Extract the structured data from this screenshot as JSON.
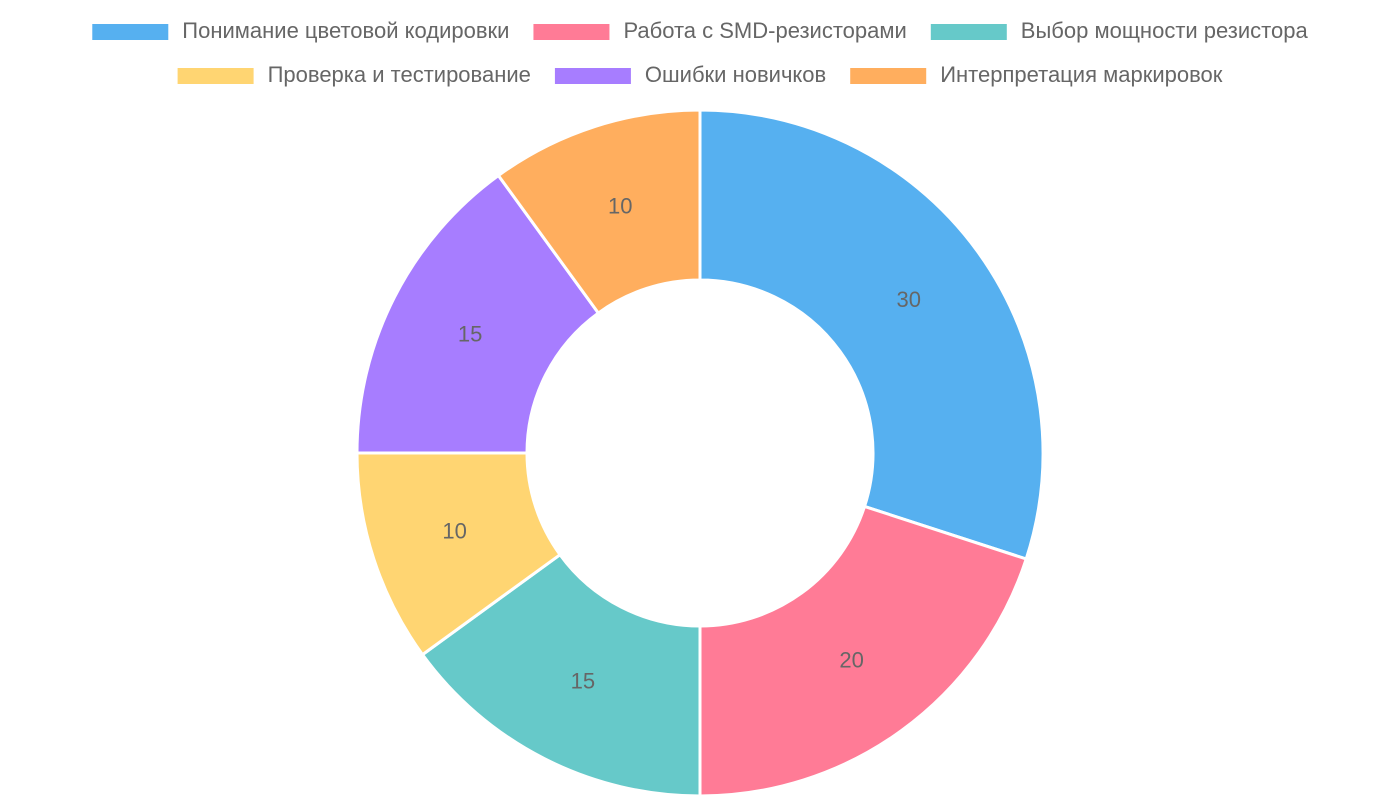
{
  "chart_data": {
    "type": "doughnut",
    "categories": [
      "Понимание цветовой кодировки",
      "Работа с SMD-резисторами",
      "Выбор мощности резистора",
      "Проверка и тестирование",
      "Ошибки новичков",
      "Интерпретация маркировок"
    ],
    "values": [
      30,
      20,
      15,
      10,
      15,
      10
    ],
    "colors": [
      "#56b0f0",
      "#ff7b96",
      "#66c9c9",
      "#ffd572",
      "#a77dff",
      "#ffae5e"
    ],
    "legend": "top"
  }
}
